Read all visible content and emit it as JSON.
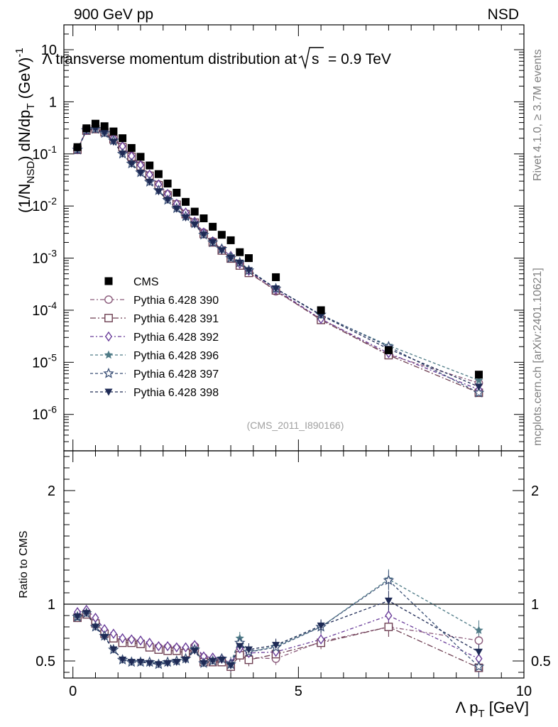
{
  "header": {
    "left": "900 GeV pp",
    "right": "NSD"
  },
  "side_texts": {
    "rivet": "Rivet 4.1.0, ≥ 3.7M events",
    "mcplots": "mcplots.cern.ch [arXiv:2401.10621]"
  },
  "chart_data": [
    {
      "type": "scatter",
      "title": "Λ transverse momentum distribution at √s = 0.9 TeV",
      "title_main": "Λ transverse momentum distribution at",
      "title_sqrt": "√s",
      "title_energy": "= 0.9 TeV",
      "ylabel": "(1/N_NSD) dN/dp_T (GeV)^-1",
      "ylabel_parts": {
        "a": "(1/N",
        "sub1": "NSD",
        "b": ") dN/dp",
        "sub2": "T",
        "c": " (GeV)",
        "sup": "-1"
      },
      "yscale": "log",
      "ylim": [
        2e-07,
        30
      ],
      "xlim": [
        -0.2,
        10
      ],
      "yticks": [
        1e-06,
        1e-05,
        0.0001,
        0.001,
        0.01,
        0.1,
        1,
        10
      ],
      "ytick_labels": [
        {
          "base": "10",
          "exp": "-6"
        },
        {
          "base": "10",
          "exp": "-5"
        },
        {
          "base": "10",
          "exp": "-4"
        },
        {
          "base": "10",
          "exp": "-3"
        },
        {
          "base": "10",
          "exp": "-2"
        },
        {
          "base": "10",
          "exp": "-1"
        },
        {
          "base": "1",
          "exp": ""
        },
        {
          "base": "10",
          "exp": ""
        }
      ],
      "watermark": "(CMS_2011_I890166)",
      "legend_position": "middle-left",
      "x": [
        0.1,
        0.3,
        0.5,
        0.7,
        0.9,
        1.1,
        1.3,
        1.5,
        1.7,
        1.9,
        2.1,
        2.3,
        2.5,
        2.7,
        2.9,
        3.1,
        3.3,
        3.5,
        3.7,
        3.9,
        4.5,
        5.5,
        7.0,
        9.0
      ],
      "series": [
        {
          "name": "CMS",
          "marker": "square",
          "color": "#000000",
          "dash": "none",
          "values": [
            0.135,
            0.31,
            0.38,
            0.34,
            0.27,
            0.2,
            0.13,
            0.088,
            0.06,
            0.041,
            0.027,
            0.018,
            0.012,
            0.0078,
            0.0058,
            0.004,
            0.0028,
            0.0022,
            0.0013,
            0.001,
            0.00043,
            0.0001,
            1.7e-05,
            5.8e-06
          ]
        },
        {
          "name": "Pythia 6.428 390",
          "marker": "circle-open",
          "color": "#8a5a7a",
          "dash": "6,3,2,3",
          "values": [
            0.12,
            0.28,
            0.3,
            0.26,
            0.19,
            0.135,
            0.092,
            0.061,
            0.039,
            0.026,
            0.017,
            0.011,
            0.0072,
            0.0048,
            0.0031,
            0.0021,
            0.0014,
            0.001,
            0.00078,
            0.00055,
            0.00023,
            6.8e-05,
            1.4e-05,
            4e-06
          ]
        },
        {
          "name": "Pythia 6.428 391",
          "marker": "square-open",
          "color": "#6e3f52",
          "dash": "8,3,2,3",
          "values": [
            0.12,
            0.28,
            0.3,
            0.26,
            0.19,
            0.134,
            0.088,
            0.058,
            0.038,
            0.025,
            0.016,
            0.0106,
            0.007,
            0.0048,
            0.0029,
            0.002,
            0.0014,
            0.00098,
            0.00072,
            0.00052,
            0.00024,
            6.5e-05,
            1.37e-05,
            2.6e-06
          ]
        },
        {
          "name": "Pythia 6.428 392",
          "marker": "diamond-open",
          "color": "#6a3d9a",
          "dash": "5,3,2,3",
          "values": [
            0.123,
            0.29,
            0.32,
            0.27,
            0.2,
            0.14,
            0.091,
            0.061,
            0.04,
            0.026,
            0.017,
            0.011,
            0.0075,
            0.005,
            0.0031,
            0.0021,
            0.0015,
            0.0011,
            0.00078,
            0.00057,
            0.00025,
            6.8e-05,
            1.5e-05,
            3e-06
          ]
        },
        {
          "name": "Pythia 6.428 396",
          "marker": "star",
          "color": "#4e7a86",
          "dash": "4,3",
          "values": [
            0.12,
            0.285,
            0.3,
            0.25,
            0.18,
            0.1,
            0.065,
            0.044,
            0.029,
            0.02,
            0.013,
            0.009,
            0.0063,
            0.0046,
            0.0028,
            0.002,
            0.0015,
            0.0011,
            0.00085,
            0.0006,
            0.00026,
            8e-05,
            2.1e-05,
            4.5e-06
          ]
        },
        {
          "name": "Pythia 6.428 397",
          "marker": "star-open",
          "color": "#3a4f76",
          "dash": "4,3",
          "values": [
            0.12,
            0.285,
            0.3,
            0.25,
            0.18,
            0.1,
            0.065,
            0.044,
            0.029,
            0.02,
            0.013,
            0.009,
            0.0063,
            0.0046,
            0.0028,
            0.002,
            0.0015,
            0.001,
            0.00082,
            0.00058,
            0.00026,
            8.2e-05,
            2e-05,
            2.6e-06
          ]
        },
        {
          "name": "Pythia 6.428 398",
          "marker": "triangle-down",
          "color": "#1e2a55",
          "dash": "4,3",
          "values": [
            0.12,
            0.285,
            0.3,
            0.25,
            0.17,
            0.1,
            0.064,
            0.043,
            0.029,
            0.019,
            0.013,
            0.0088,
            0.006,
            0.0044,
            0.0028,
            0.002,
            0.0014,
            0.001,
            0.00081,
            0.00058,
            0.00026,
            8e-05,
            1.8e-05,
            3.4e-06
          ]
        }
      ]
    },
    {
      "type": "scatter",
      "title": "",
      "ylabel": "Ratio to CMS",
      "xlabel": "Λ p_T [GeV]",
      "xlabel_parts": {
        "a": "Λ p",
        "sub": "T",
        "b": " [GeV]"
      },
      "ylim": [
        0.35,
        2.35
      ],
      "xlim": [
        -0.2,
        10
      ],
      "yticks": [
        0.5,
        1,
        2
      ],
      "ytick_labels": [
        "0.5",
        "1",
        "2"
      ],
      "xticks": [
        0,
        5,
        10
      ],
      "xtick_labels": [
        "0",
        "5",
        "10"
      ],
      "reference": 1,
      "x": [
        0.1,
        0.3,
        0.5,
        0.7,
        0.9,
        1.1,
        1.3,
        1.5,
        1.7,
        1.9,
        2.1,
        2.3,
        2.5,
        2.7,
        2.9,
        3.1,
        3.3,
        3.5,
        3.7,
        3.9,
        4.5,
        5.5,
        7.0,
        9.0
      ],
      "series": [
        {
          "name": "Pythia 6.428 390",
          "values": [
            0.88,
            0.92,
            0.84,
            0.75,
            0.71,
            0.68,
            0.68,
            0.66,
            0.64,
            0.62,
            0.62,
            0.61,
            0.59,
            0.63,
            0.53,
            0.5,
            0.49,
            0.46,
            0.59,
            0.53,
            0.52,
            0.67,
            0.8,
            0.68
          ]
        },
        {
          "name": "Pythia 6.428 391",
          "values": [
            0.88,
            0.91,
            0.83,
            0.74,
            0.7,
            0.66,
            0.66,
            0.65,
            0.62,
            0.6,
            0.59,
            0.59,
            0.57,
            0.61,
            0.49,
            0.49,
            0.49,
            0.45,
            0.55,
            0.51,
            0.56,
            0.66,
            0.8,
            0.44
          ]
        },
        {
          "name": "Pythia 6.428 392",
          "values": [
            0.93,
            0.95,
            0.88,
            0.78,
            0.74,
            0.7,
            0.69,
            0.68,
            0.66,
            0.63,
            0.63,
            0.62,
            0.62,
            0.64,
            0.54,
            0.53,
            0.52,
            0.48,
            0.61,
            0.57,
            0.58,
            0.69,
            0.9,
            0.52
          ]
        },
        {
          "name": "Pythia 6.428 396",
          "values": [
            0.88,
            0.92,
            0.8,
            0.72,
            0.6,
            0.51,
            0.5,
            0.49,
            0.49,
            0.48,
            0.49,
            0.5,
            0.52,
            0.61,
            0.48,
            0.5,
            0.52,
            0.48,
            0.7,
            0.58,
            0.63,
            0.8,
            1.22,
            0.77
          ]
        },
        {
          "name": "Pythia 6.428 397",
          "values": [
            0.89,
            0.92,
            0.8,
            0.72,
            0.6,
            0.51,
            0.49,
            0.49,
            0.49,
            0.47,
            0.49,
            0.5,
            0.52,
            0.6,
            0.48,
            0.5,
            0.52,
            0.47,
            0.66,
            0.58,
            0.62,
            0.8,
            1.21,
            0.45
          ]
        },
        {
          "name": "Pythia 6.428 398",
          "values": [
            0.89,
            0.92,
            0.8,
            0.71,
            0.6,
            0.51,
            0.49,
            0.49,
            0.48,
            0.47,
            0.48,
            0.49,
            0.51,
            0.59,
            0.48,
            0.5,
            0.51,
            0.46,
            0.63,
            0.6,
            0.64,
            0.81,
            1.03,
            0.58
          ]
        }
      ]
    }
  ]
}
